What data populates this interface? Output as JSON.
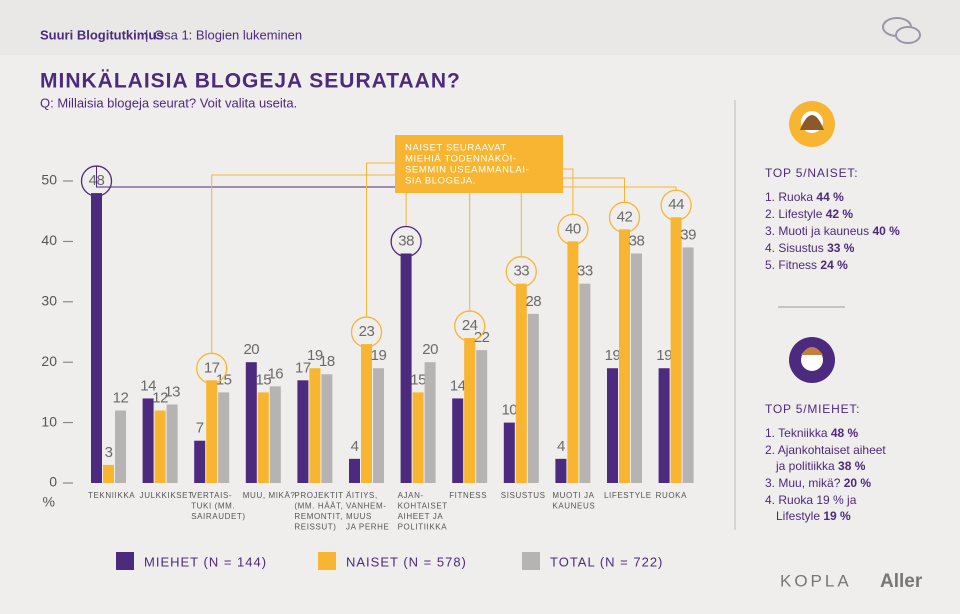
{
  "header": {
    "series": "Suuri Blogitutkimus",
    "separator": "|",
    "part": "Osa 1: Blogien lukeminen"
  },
  "title": "MINKÄLAISIA BLOGEJA SEURATAAN?",
  "question": "Q: Millaisia blogeja seurat? Voit valita useita.",
  "chart_data": {
    "type": "bar",
    "annotation": [
      "NAISET SEURAAVAT",
      "MIEHIÄ TODENNÄKÖI-",
      "SEMMIN USEAMMANLAI-",
      "SIA BLOGEJA."
    ],
    "categories": [
      [
        "TEKNIIKKA"
      ],
      [
        "JULKKIKSET"
      ],
      [
        "VERTAIS-",
        "TUKI (MM.",
        "SAIRAUDET)"
      ],
      [
        "MUU, MIKÄ?"
      ],
      [
        "PROJEKTIT",
        "(MM. HÄÄT,",
        "REMONTIT,",
        "REISSUT)"
      ],
      [
        "ÄITIYS,",
        "VANHEM-",
        "MUUS",
        "JA PERHE"
      ],
      [
        "AJAN-",
        "KOHTAISET",
        "AIHEET JA",
        "POLITIIKKA"
      ],
      [
        "FITNESS"
      ],
      [
        "SISUSTUS"
      ],
      [
        "MUOTI JA",
        "KAUNEUS"
      ],
      [
        "LIFESTYLE"
      ],
      [
        "RUOKA"
      ]
    ],
    "series": [
      {
        "name": "MIEHET (N = 144)",
        "color": "#4c2a7d",
        "values": [
          48,
          14,
          7,
          20,
          17,
          4,
          38,
          14,
          10,
          4,
          19,
          19
        ]
      },
      {
        "name": "NAISET (N = 578)",
        "color": "#f7b532",
        "values": [
          3,
          12,
          17,
          15,
          19,
          23,
          15,
          24,
          33,
          40,
          42,
          44
        ]
      },
      {
        "name": "TOTAL (N = 722)",
        "color": "#b5b4b3",
        "values": [
          12,
          13,
          15,
          16,
          18,
          19,
          20,
          22,
          28,
          33,
          38,
          39
        ]
      }
    ],
    "ylim": [
      0,
      50
    ],
    "yticks": [
      0,
      10,
      20,
      30,
      40,
      50
    ],
    "y_unit": "%"
  },
  "sidebar": {
    "women": {
      "title": "TOP 5/NAISET:",
      "items": [
        {
          "rank": "1.",
          "text": "Ruoka",
          "value": "44 %"
        },
        {
          "rank": "2.",
          "text": "Lifestyle",
          "value": "42 %"
        },
        {
          "rank": "3.",
          "text": "Muoti ja kauneus",
          "value": "40 %"
        },
        {
          "rank": "4.",
          "text": "Sisustus",
          "value": "33 %"
        },
        {
          "rank": "5.",
          "text": "Fitness",
          "value": "24 %"
        }
      ]
    },
    "men": {
      "title": "TOP 5/MIEHET:",
      "items": [
        {
          "rank": "1.",
          "text": "Tekniikka",
          "value": "48 %"
        },
        {
          "rank": "2.",
          "text": "Ajankohtaiset aiheet ja politiikka",
          "value": "38 %"
        },
        {
          "rank": "3.",
          "text": "Muu, mikä?",
          "value": "20 %"
        },
        {
          "rank": "4.",
          "text": "Ruoka 19 % ja Lifestyle",
          "value": "19 %"
        }
      ]
    }
  },
  "logos": [
    "KOPLA",
    "Aller"
  ]
}
